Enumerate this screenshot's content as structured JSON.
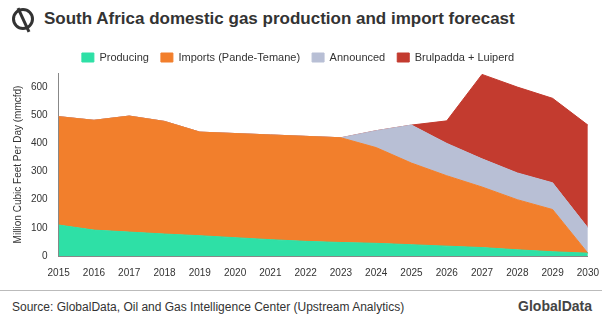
{
  "chart_data": {
    "type": "stacked_area",
    "title": "South Africa domestic gas production and import forecast",
    "y_label": "Million Cubic Feet Per Day (mmcfd)",
    "source": "Source: GlobalData, Oil and Gas Intelligence Center (Upstream Analytics)",
    "logo_text": "GlobalData",
    "categories": [
      "2015",
      "2016",
      "2017",
      "2018",
      "2019",
      "2020",
      "2021",
      "2022",
      "2023",
      "2024",
      "2025",
      "2026",
      "2027",
      "2028",
      "2029",
      "2030"
    ],
    "series": [
      {
        "name": "Producing",
        "color": "#2ee0a6",
        "values": [
          110,
          92,
          85,
          78,
          72,
          65,
          58,
          52,
          48,
          45,
          40,
          35,
          30,
          22,
          15,
          10
        ]
      },
      {
        "name": "Imports (Pande-Temane)",
        "color": "#f27f2c",
        "values": [
          385,
          390,
          412,
          400,
          368,
          370,
          372,
          373,
          372,
          340,
          290,
          250,
          215,
          178,
          150,
          0
        ]
      },
      {
        "name": "Announced",
        "color": "#b8bfd5",
        "values": [
          0,
          0,
          0,
          0,
          0,
          0,
          0,
          0,
          0,
          60,
          135,
          115,
          100,
          95,
          95,
          90
        ]
      },
      {
        "name": "Brulpadda + Luiperd",
        "color": "#c33b2f",
        "values": [
          0,
          0,
          0,
          0,
          0,
          0,
          0,
          0,
          0,
          0,
          0,
          80,
          300,
          305,
          300,
          365
        ]
      }
    ],
    "stacked": true,
    "ylim": [
      0,
      650
    ],
    "yticks": [
      0,
      100,
      200,
      300,
      400,
      500,
      600
    ],
    "grid": false,
    "legend": "top"
  }
}
